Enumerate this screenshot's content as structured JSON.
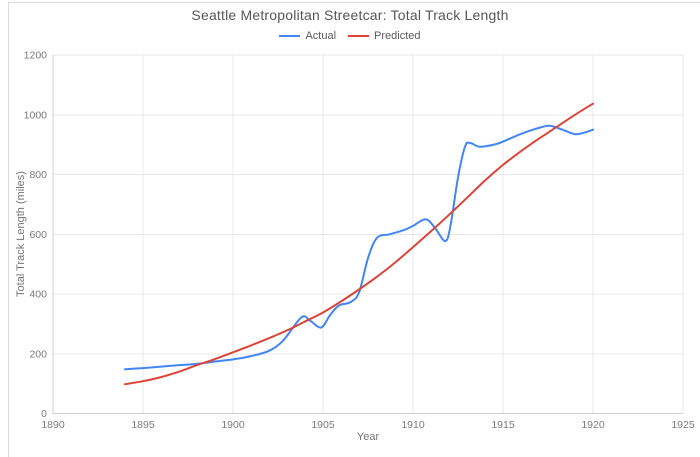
{
  "card": {
    "border_color": "#dcdcdc"
  },
  "colors": {
    "background": "#ffffff",
    "title_text": "#565656",
    "legend_text": "#5a5a5a",
    "tick_label": "#7b7b7b",
    "axis_title": "#757575",
    "gridline": "#e8e8e8",
    "axis_line": "#cfcfcf",
    "actual_line": "#4285f4",
    "predicted_line": "#db4437"
  },
  "chart_data": {
    "type": "line",
    "title": "Seattle Metropolitan Streetcar: Total Track Length",
    "xlabel": "Year",
    "ylabel": "Total Track Length (miles)",
    "xlim": [
      1890,
      1925
    ],
    "ylim": [
      0,
      1200
    ],
    "x_ticks": [
      1890,
      1895,
      1900,
      1905,
      1910,
      1915,
      1920,
      1925
    ],
    "y_ticks": [
      0,
      200,
      400,
      600,
      800,
      1000,
      1200
    ],
    "grid": true,
    "legend_position": "top-center",
    "series": [
      {
        "name": "Actual",
        "color": "#4285f4",
        "points": [
          [
            1894,
            148
          ],
          [
            1895,
            152
          ],
          [
            1896,
            157
          ],
          [
            1897,
            162
          ],
          [
            1898,
            166
          ],
          [
            1899,
            174
          ],
          [
            1900,
            181
          ],
          [
            1901,
            192
          ],
          [
            1902,
            210
          ],
          [
            1902.8,
            245
          ],
          [
            1903.8,
            322
          ],
          [
            1904.3,
            310
          ],
          [
            1904.9,
            288
          ],
          [
            1905.4,
            330
          ],
          [
            1905.9,
            362
          ],
          [
            1906.5,
            372
          ],
          [
            1907,
            405
          ],
          [
            1907.5,
            520
          ],
          [
            1908,
            588
          ],
          [
            1908.7,
            600
          ],
          [
            1909.5,
            614
          ],
          [
            1910,
            628
          ],
          [
            1910.7,
            650
          ],
          [
            1911.2,
            623
          ],
          [
            1911.8,
            577
          ],
          [
            1912.1,
            635
          ],
          [
            1912.5,
            790
          ],
          [
            1912.9,
            895
          ],
          [
            1913.2,
            905
          ],
          [
            1913.7,
            893
          ],
          [
            1914.5,
            900
          ],
          [
            1915,
            910
          ],
          [
            1916,
            936
          ],
          [
            1917,
            956
          ],
          [
            1917.6,
            963
          ],
          [
            1918.3,
            950
          ],
          [
            1919,
            935
          ],
          [
            1919.5,
            940
          ],
          [
            1920,
            950
          ]
        ]
      },
      {
        "name": "Predicted",
        "color": "#db4437",
        "points": [
          [
            1894,
            98
          ],
          [
            1895,
            108
          ],
          [
            1896,
            122
          ],
          [
            1897,
            140
          ],
          [
            1898,
            162
          ],
          [
            1899,
            182
          ],
          [
            1900,
            205
          ],
          [
            1901,
            228
          ],
          [
            1902,
            252
          ],
          [
            1903,
            278
          ],
          [
            1904,
            308
          ],
          [
            1905,
            338
          ],
          [
            1906,
            375
          ],
          [
            1907,
            415
          ],
          [
            1908,
            458
          ],
          [
            1909,
            505
          ],
          [
            1910,
            557
          ],
          [
            1911,
            610
          ],
          [
            1912,
            665
          ],
          [
            1913,
            722
          ],
          [
            1914,
            780
          ],
          [
            1915,
            832
          ],
          [
            1916,
            878
          ],
          [
            1917,
            920
          ],
          [
            1918,
            960
          ],
          [
            1919,
            1000
          ],
          [
            1920,
            1037
          ]
        ]
      }
    ]
  }
}
